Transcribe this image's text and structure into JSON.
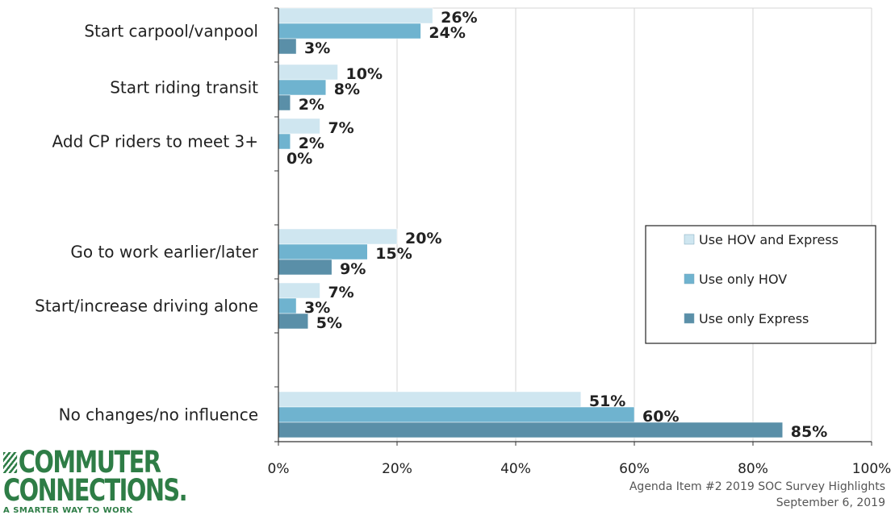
{
  "chart_data": {
    "type": "bar",
    "orientation": "horizontal",
    "categories": [
      "Start carpool/vanpool",
      "Start riding transit",
      "Add CP riders to meet 3+",
      "Go to work earlier/later",
      "Start/increase driving alone",
      "No changes/no influence"
    ],
    "series": [
      {
        "name": "Use HOV and Express",
        "values": [
          26,
          10,
          7,
          20,
          7,
          51
        ],
        "labels": [
          "26%",
          "10%",
          "7%",
          "20%",
          "7%",
          "51%"
        ],
        "color": "#cfe6f0"
      },
      {
        "name": "Use only HOV",
        "values": [
          24,
          8,
          2,
          15,
          3,
          60
        ],
        "labels": [
          "24%",
          "8%",
          "2%",
          "15%",
          "3%",
          "60%"
        ],
        "color": "#6fb3cf"
      },
      {
        "name": "Use only Express",
        "values": [
          3,
          2,
          0,
          9,
          5,
          85
        ],
        "labels": [
          "3%",
          "2%",
          "0%",
          "9%",
          "5%",
          "85%"
        ],
        "color": "#5a8fa8"
      }
    ],
    "xlim": [
      0,
      100
    ],
    "xticks": [
      "0%",
      "20%",
      "40%",
      "60%",
      "80%",
      "100%"
    ],
    "grid": true,
    "legend_position": "right"
  },
  "footer": {
    "line1": "Agenda Item #2 2019 SOC Survey Highlights",
    "line2": "September 6, 2019"
  },
  "logo": {
    "line1": "COMMUTER",
    "line2": "CONNECTIONS.",
    "tagline": "A SMARTER WAY TO WORK",
    "color": "#2e7d46"
  }
}
